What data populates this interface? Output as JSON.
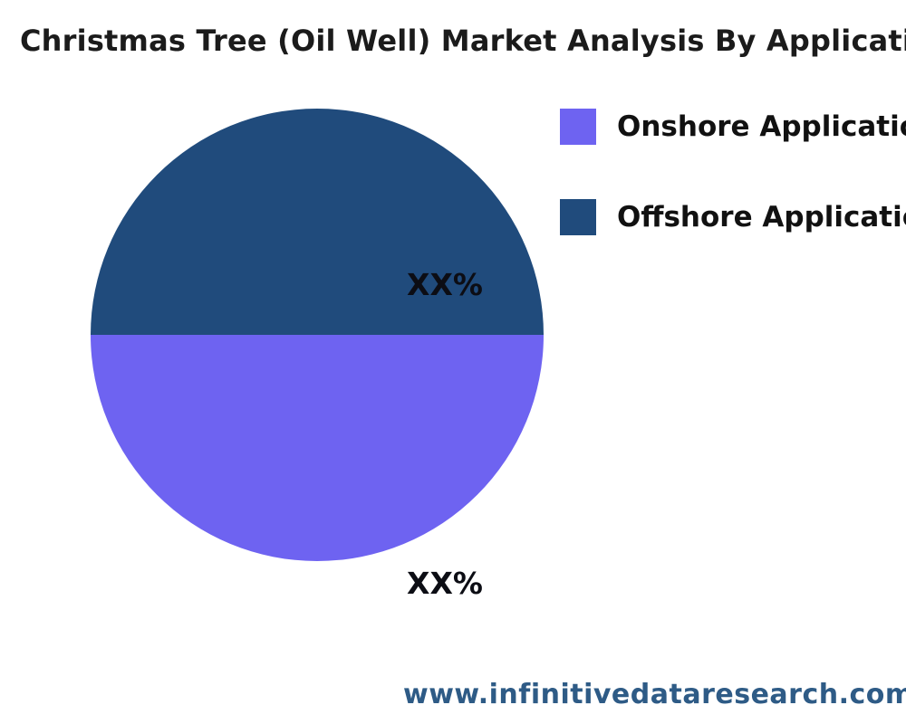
{
  "title": "Christmas Tree (Oil Well) Market Analysis By Application",
  "chart_data": {
    "type": "pie",
    "title": "Christmas Tree (Oil Well) Market Analysis By Application",
    "slices": [
      {
        "label": "Offshore Application",
        "display_value": "XX%",
        "value": 50,
        "color": "#204B7C",
        "position": "top-half"
      },
      {
        "label": "Onshore Application",
        "display_value": "XX%",
        "value": 50,
        "color": "#6E63F1",
        "position": "bottom-half"
      }
    ],
    "legend_position": "right",
    "legend": [
      {
        "label": "Onshore Application",
        "color": "#6E63F1"
      },
      {
        "label": "Offshore Application",
        "color": "#204B7C"
      }
    ]
  },
  "footer": {
    "website": "www.infinitivedataresearch.com",
    "color": "#2E5B86"
  }
}
